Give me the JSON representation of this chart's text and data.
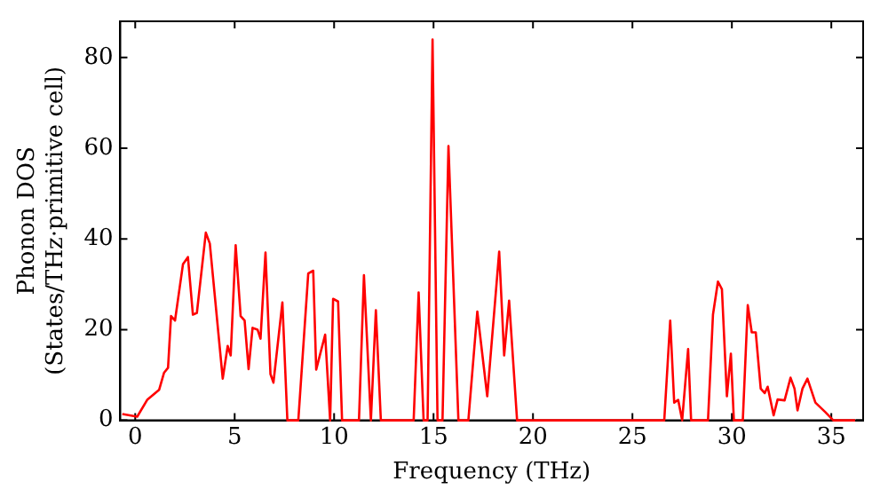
{
  "chart_data": {
    "type": "line",
    "xlabel": "Frequency (THz)",
    "ylabel": "Phonon DOS\n(States/THz·primitive cell)",
    "xlim": [
      -0.75,
      36.6
    ],
    "ylim": [
      0,
      88
    ],
    "xticks": [
      0,
      5,
      10,
      15,
      20,
      25,
      30,
      35
    ],
    "yticks": [
      0,
      20,
      40,
      60,
      80
    ],
    "grid": false,
    "legend": false,
    "marker": "none",
    "line_style": "solid",
    "series": [
      {
        "color": "#ff0000",
        "x": [
          -0.65,
          0.1,
          0.6,
          1.2,
          1.45,
          1.65,
          1.8,
          2.0,
          2.4,
          2.65,
          2.9,
          3.1,
          3.55,
          3.75,
          4.4,
          4.65,
          4.8,
          5.05,
          5.3,
          5.5,
          5.7,
          5.9,
          6.15,
          6.3,
          6.55,
          6.8,
          6.95,
          7.4,
          7.65,
          8.2,
          8.7,
          8.95,
          9.1,
          9.55,
          9.8,
          9.95,
          10.2,
          10.4,
          11.25,
          11.5,
          11.85,
          12.1,
          12.35,
          14.0,
          14.25,
          14.5,
          14.7,
          14.95,
          15.2,
          15.45,
          15.75,
          16.25,
          16.75,
          17.2,
          17.7,
          18.3,
          18.55,
          18.8,
          19.2,
          26.6,
          26.9,
          27.1,
          27.3,
          27.5,
          27.8,
          27.95,
          28.8,
          29.05,
          29.3,
          29.5,
          29.75,
          29.95,
          30.1,
          30.55,
          30.8,
          31.0,
          31.2,
          31.45,
          31.65,
          31.8,
          32.1,
          32.3,
          32.65,
          32.95,
          33.15,
          33.3,
          33.55,
          33.8,
          34.2,
          34.7,
          35.1,
          36.2
        ],
        "values": [
          1.4,
          0.8,
          4.5,
          6.7,
          10.5,
          11.6,
          23,
          22,
          34.4,
          36,
          23.3,
          23.7,
          41.4,
          39,
          9.2,
          16.4,
          14.3,
          38.6,
          23,
          22,
          11.3,
          20.4,
          20,
          18,
          37,
          10.2,
          8.3,
          26,
          0,
          0,
          32.4,
          33,
          11.2,
          18.9,
          0,
          26.8,
          26.2,
          0,
          0,
          32,
          0,
          24.3,
          0,
          0,
          28.2,
          0,
          0,
          84,
          0,
          0,
          60.5,
          0,
          0,
          24,
          5.3,
          37.2,
          14.3,
          26.4,
          0,
          0,
          22,
          3.9,
          4.5,
          0,
          15.7,
          0,
          0,
          23.3,
          30.6,
          28.9,
          5.3,
          14.7,
          0,
          0,
          25.4,
          19.4,
          19.4,
          7,
          6,
          7.4,
          1.1,
          4.6,
          4.4,
          9.4,
          7,
          2.2,
          7,
          9.2,
          3.9,
          1.8,
          0,
          0
        ]
      }
    ]
  }
}
